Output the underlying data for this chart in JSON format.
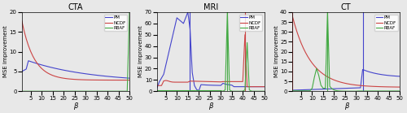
{
  "titles": [
    "CTA",
    "MRI",
    "CT"
  ],
  "xlabel": "β",
  "ylabel": "MSE improvement",
  "xlim": [
    1,
    50
  ],
  "xticks": [
    5,
    10,
    15,
    20,
    25,
    30,
    35,
    40,
    45,
    50
  ],
  "legend_labels": [
    "PM",
    "NCDF",
    "RBAF"
  ],
  "legend_colors": [
    "#4444cc",
    "#cc4444",
    "#44aa44"
  ],
  "cta_ylim": [
    0,
    20
  ],
  "cta_yticks": [
    0,
    5,
    10,
    15,
    20
  ],
  "mri_ylim": [
    0,
    70
  ],
  "mri_yticks": [
    0,
    10,
    20,
    30,
    40,
    50,
    60,
    70
  ],
  "ct_ylim": [
    0,
    40
  ],
  "ct_yticks": [
    0,
    5,
    10,
    15,
    20,
    25,
    30,
    35,
    40
  ],
  "background": "#e8e8e8",
  "figsize": [
    5.0,
    1.39
  ],
  "dpi": 100
}
